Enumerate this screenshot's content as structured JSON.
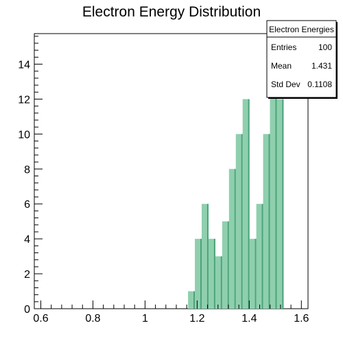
{
  "chart_data": {
    "type": "bar",
    "title": "Electron Energy Distribution",
    "xlabel": "",
    "ylabel": "",
    "xlim": [
      0.575,
      1.6255
    ],
    "ylim": [
      0,
      15.75
    ],
    "x_ticks": [
      0.6,
      0.8,
      1,
      1.2,
      1.4,
      1.6
    ],
    "y_ticks": [
      0,
      2,
      4,
      6,
      8,
      10,
      12,
      14
    ],
    "x_tick_labels": [
      "0.6",
      "0.8",
      "1",
      "1.2",
      "1.4",
      "1.6"
    ],
    "y_tick_labels": [
      "0",
      "2",
      "4",
      "6",
      "8",
      "10",
      "12",
      "14"
    ],
    "bin_width": 0.0262,
    "bin_edges_start": 1.165,
    "values": [
      1,
      4,
      6,
      4,
      3,
      5,
      8,
      10,
      12,
      4,
      6,
      10,
      14,
      12
    ],
    "bar_color": "#8fcfae",
    "bar_edge_color": "#4aa37a",
    "legend": {
      "title": "Electron Energies",
      "rows": [
        {
          "label": "Entries",
          "value": "100"
        },
        {
          "label": "Mean",
          "value": "1.431"
        },
        {
          "label": "Std Dev",
          "value": "0.1108"
        }
      ]
    }
  }
}
